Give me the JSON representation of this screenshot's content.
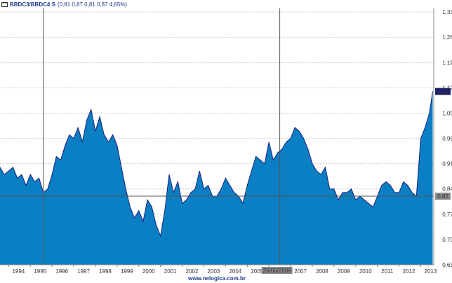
{
  "header": {
    "ticker": "BBDC3/BBDC4 S",
    "quote": "(0,81  0,87  0,81  0,87  4,65%)"
  },
  "footer": {
    "url": "www.nelogica.com.br"
  },
  "crosshair": {
    "date_label": "26/06/2006",
    "value_label": "0,82"
  },
  "last_value_label": "1,11",
  "colors": {
    "fill": "#0a7fc3",
    "line": "#1a1f7a",
    "grid": "#c8c8c8",
    "crosshair": "#555555",
    "last_badge": "#1b1f6e"
  },
  "chart_data": {
    "type": "area",
    "title": "BBDC3/BBDC4 S",
    "xlabel": "",
    "ylabel": "",
    "xlim": [
      1993.6,
      2013.6
    ],
    "ylim": [
      0.63,
      1.34
    ],
    "grid": true,
    "yticks": [
      0.63,
      0.7,
      0.77,
      0.84,
      0.91,
      0.98,
      1.05,
      1.12,
      1.19,
      1.26,
      1.33
    ],
    "ytick_labels": [
      "0,63",
      "0,70",
      "0,77",
      "0,84",
      "0,91",
      "0,98",
      "1,05",
      "1,12",
      "1,19",
      "1,26",
      "1,33"
    ],
    "xticks": [
      1994,
      1995,
      1996,
      1997,
      1998,
      1999,
      2000,
      2001,
      2002,
      2003,
      2004,
      2005,
      2006,
      2007,
      2008,
      2009,
      2010,
      2011,
      2012,
      2013
    ],
    "xtick_labels": [
      "1994",
      "1995",
      "1996",
      "1997",
      "1998",
      "1999",
      "2000",
      "2001",
      "2002",
      "2003",
      "2004",
      "2005",
      "",
      "2007",
      "2008",
      "2009",
      "2010",
      "2011",
      "2012",
      "2013"
    ],
    "crosshair_x": 2006.5,
    "crosshair_y": 0.82,
    "marker_x": 1995.6,
    "last_value": 1.11,
    "series": [
      {
        "name": "BBDC3/BBDC4 S",
        "x": [
          1993.6,
          1993.8,
          1994.0,
          1994.2,
          1994.4,
          1994.6,
          1994.8,
          1995.0,
          1995.2,
          1995.4,
          1995.6,
          1995.8,
          1996.0,
          1996.2,
          1996.4,
          1996.6,
          1996.8,
          1997.0,
          1997.2,
          1997.4,
          1997.6,
          1997.8,
          1998.0,
          1998.2,
          1998.4,
          1998.6,
          1998.8,
          1999.0,
          1999.2,
          1999.4,
          1999.6,
          1999.8,
          2000.0,
          2000.2,
          2000.4,
          2000.6,
          2000.8,
          2001.0,
          2001.2,
          2001.4,
          2001.6,
          2001.8,
          2002.0,
          2002.2,
          2002.4,
          2002.6,
          2002.8,
          2003.0,
          2003.2,
          2003.4,
          2003.6,
          2003.8,
          2004.0,
          2004.2,
          2004.4,
          2004.6,
          2004.8,
          2005.0,
          2005.2,
          2005.4,
          2005.6,
          2005.8,
          2006.0,
          2006.2,
          2006.4,
          2006.6,
          2006.8,
          2007.0,
          2007.2,
          2007.4,
          2007.6,
          2007.8,
          2008.0,
          2008.2,
          2008.4,
          2008.6,
          2008.8,
          2009.0,
          2009.2,
          2009.4,
          2009.6,
          2009.8,
          2010.0,
          2010.2,
          2010.4,
          2010.6,
          2010.8,
          2011.0,
          2011.2,
          2011.4,
          2011.6,
          2011.8,
          2012.0,
          2012.2,
          2012.4,
          2012.6,
          2012.8,
          2013.0,
          2013.2,
          2013.4,
          2013.55
        ],
        "y": [
          0.9,
          0.88,
          0.89,
          0.9,
          0.87,
          0.88,
          0.85,
          0.88,
          0.86,
          0.87,
          0.83,
          0.84,
          0.88,
          0.93,
          0.92,
          0.96,
          0.99,
          0.98,
          1.01,
          0.97,
          1.03,
          1.06,
          1.0,
          1.04,
          0.99,
          0.97,
          0.99,
          0.96,
          0.9,
          0.84,
          0.79,
          0.76,
          0.78,
          0.75,
          0.81,
          0.79,
          0.74,
          0.71,
          0.78,
          0.88,
          0.83,
          0.86,
          0.8,
          0.81,
          0.83,
          0.84,
          0.89,
          0.84,
          0.85,
          0.82,
          0.82,
          0.84,
          0.87,
          0.85,
          0.83,
          0.82,
          0.8,
          0.85,
          0.89,
          0.93,
          0.92,
          0.91,
          0.97,
          0.92,
          0.94,
          0.95,
          0.97,
          0.98,
          1.01,
          1.0,
          0.98,
          0.95,
          0.91,
          0.89,
          0.88,
          0.9,
          0.84,
          0.84,
          0.81,
          0.83,
          0.83,
          0.84,
          0.81,
          0.82,
          0.81,
          0.8,
          0.79,
          0.82,
          0.85,
          0.86,
          0.85,
          0.83,
          0.83,
          0.86,
          0.85,
          0.83,
          0.82,
          0.98,
          1.01,
          1.05,
          1.11
        ]
      }
    ]
  }
}
